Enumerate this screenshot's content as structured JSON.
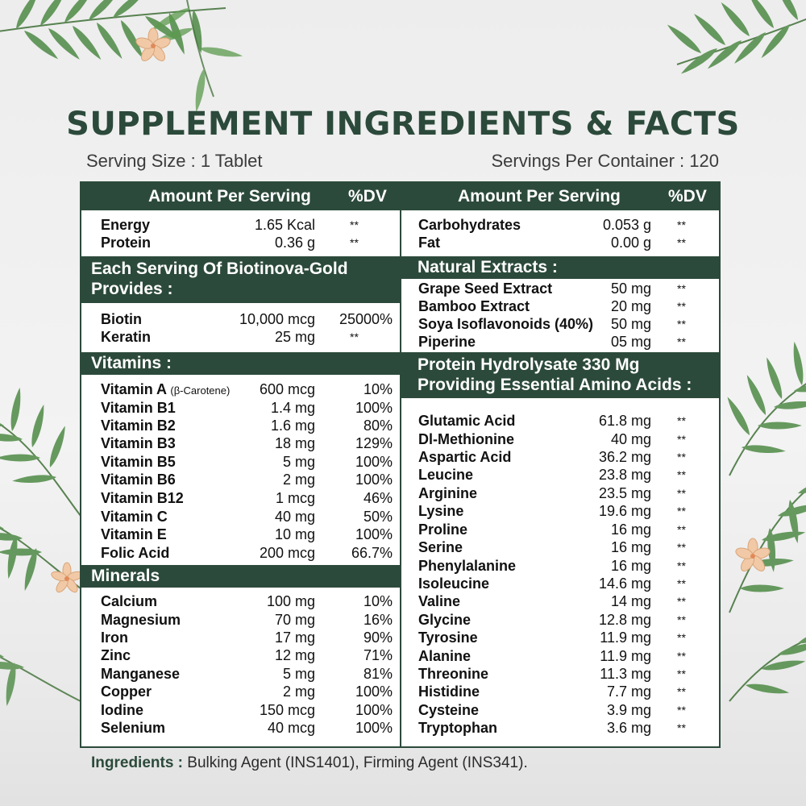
{
  "title": "SUPPLEMENT INGREDIENTS & FACTS",
  "serving_size": "Serving Size : 1 Tablet",
  "servings_per_container": "Servings Per Container : 120",
  "left": {
    "header": {
      "amount": "Amount Per Serving",
      "dv": "%DV"
    },
    "basic": [
      {
        "name": "Energy",
        "amount": "1.65 Kcal",
        "dv": "**"
      },
      {
        "name": "Protein",
        "amount": "0.36 g",
        "dv": "**"
      }
    ],
    "biotinova_header_line1": "Each Serving Of Biotinova-Gold",
    "biotinova_header_line2": "Provides :",
    "biotinova": [
      {
        "name": "Biotin",
        "amount": "10,000 mcg",
        "dv": "25000%"
      },
      {
        "name": "Keratin",
        "amount": "25 mg",
        "dv": "**"
      }
    ],
    "vitamins_header": "Vitamins :",
    "vitamin_a": {
      "name": "Vitamin A",
      "sub": "(β-Carotene)",
      "amount": "600 mcg",
      "dv": "10%"
    },
    "vitamins": [
      {
        "name": "Vitamin B1",
        "amount": "1.4 mg",
        "dv": "100%"
      },
      {
        "name": "Vitamin B2",
        "amount": "1.6 mg",
        "dv": "80%"
      },
      {
        "name": "Vitamin B3",
        "amount": "18 mg",
        "dv": "129%"
      },
      {
        "name": "Vitamin B5",
        "amount": "5 mg",
        "dv": "100%"
      },
      {
        "name": "Vitamin B6",
        "amount": "2 mg",
        "dv": "100%"
      },
      {
        "name": "Vitamin B12",
        "amount": "1 mcg",
        "dv": "46%"
      },
      {
        "name": "Vitamin C",
        "amount": "40 mg",
        "dv": "50%"
      },
      {
        "name": "Vitamin E",
        "amount": "10 mg",
        "dv": "100%"
      },
      {
        "name": "Folic Acid",
        "amount": "200 mcg",
        "dv": "66.7%"
      }
    ],
    "minerals_header": "Minerals",
    "minerals": [
      {
        "name": "Calcium",
        "amount": "100 mg",
        "dv": "10%"
      },
      {
        "name": "Magnesium",
        "amount": "70 mg",
        "dv": "16%"
      },
      {
        "name": "Iron",
        "amount": "17 mg",
        "dv": "90%"
      },
      {
        "name": "Zinc",
        "amount": "12 mg",
        "dv": "71%"
      },
      {
        "name": "Manganese",
        "amount": "5 mg",
        "dv": "81%"
      },
      {
        "name": "Copper",
        "amount": "2 mg",
        "dv": "100%"
      },
      {
        "name": "Iodine",
        "amount": "150 mcg",
        "dv": "100%"
      },
      {
        "name": "Selenium",
        "amount": "40 mcg",
        "dv": "100%"
      }
    ]
  },
  "right": {
    "header": {
      "amount": "Amount Per Serving",
      "dv": "%DV"
    },
    "basic": [
      {
        "name": "Carbohydrates",
        "amount": "0.053 g",
        "dv": "**"
      },
      {
        "name": "Fat",
        "amount": "0.00 g",
        "dv": "**"
      }
    ],
    "extracts_header": "Natural Extracts :",
    "extracts": [
      {
        "name": "Grape Seed Extract",
        "amount": "50 mg",
        "dv": "**"
      },
      {
        "name": "Bamboo Extract",
        "amount": "20 mg",
        "dv": "**"
      },
      {
        "name": "Soya Isoflavonoids (40%)",
        "amount": "50 mg",
        "dv": "**"
      },
      {
        "name": "Piperine",
        "amount": "05 mg",
        "dv": "**"
      }
    ],
    "protein_header_line1": "Protein Hydrolysate 330 Mg",
    "protein_header_line2": "Providing Essential Amino Acids :",
    "amino_acids": [
      {
        "name": "Glutamic Acid",
        "amount": "61.8 mg",
        "dv": "**"
      },
      {
        "name": "Dl-Methionine",
        "amount": "40 mg",
        "dv": "**"
      },
      {
        "name": "Aspartic Acid",
        "amount": "36.2 mg",
        "dv": "**"
      },
      {
        "name": "Leucine",
        "amount": "23.8 mg",
        "dv": "**"
      },
      {
        "name": "Arginine",
        "amount": "23.5 mg",
        "dv": "**"
      },
      {
        "name": "Lysine",
        "amount": "19.6 mg",
        "dv": "**"
      },
      {
        "name": "Proline",
        "amount": "16 mg",
        "dv": "**"
      },
      {
        "name": "Serine",
        "amount": "16 mg",
        "dv": "**"
      },
      {
        "name": "Phenylalanine",
        "amount": "16 mg",
        "dv": "**"
      },
      {
        "name": "Isoleucine",
        "amount": "14.6 mg",
        "dv": "**"
      },
      {
        "name": "Valine",
        "amount": "14 mg",
        "dv": "**"
      },
      {
        "name": "Glycine",
        "amount": "12.8 mg",
        "dv": "**"
      },
      {
        "name": "Tyrosine",
        "amount": "11.9 mg",
        "dv": "**"
      },
      {
        "name": "Alanine",
        "amount": "11.9 mg",
        "dv": "**"
      },
      {
        "name": "Threonine",
        "amount": "11.3 mg",
        "dv": "**"
      },
      {
        "name": "Histidine",
        "amount": "7.7 mg",
        "dv": "**"
      },
      {
        "name": "Cysteine",
        "amount": "3.9 mg",
        "dv": "**"
      },
      {
        "name": "Tryptophan",
        "amount": "3.6 mg",
        "dv": "**"
      }
    ]
  },
  "ingredients": {
    "label": "Ingredients :",
    "text": " Bulking Agent (INS1401), Firming Agent (INS341)."
  },
  "colors": {
    "brand_green": "#2c4a3b",
    "background": "#efefef",
    "leaf_green": "#4e8a45",
    "flower": "#f1c9a6"
  }
}
